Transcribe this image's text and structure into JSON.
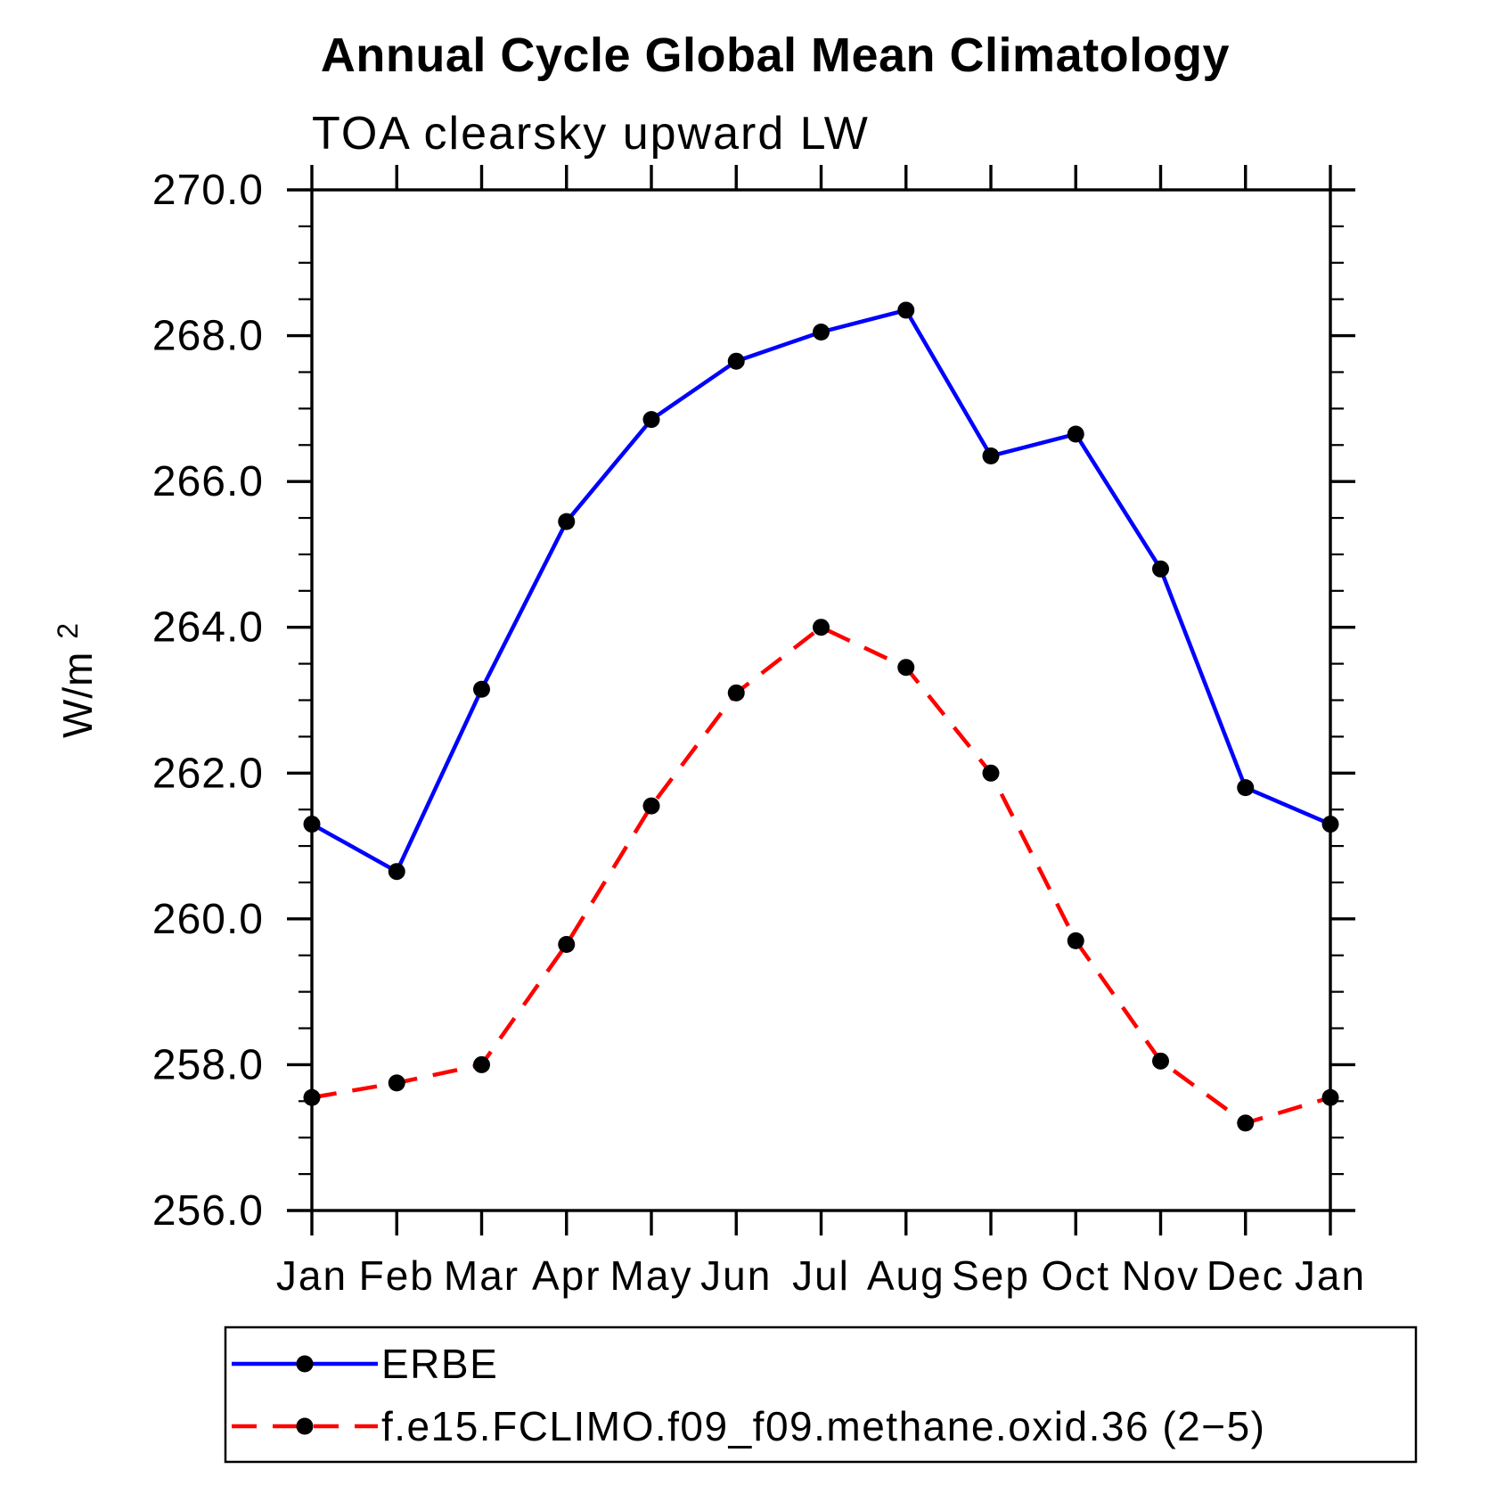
{
  "chart_data": {
    "type": "line",
    "title": "Annual Cycle Global Mean Climatology",
    "subtitle": "TOA clearsky upward LW",
    "ylabel": {
      "base": "W/m",
      "exponent": "2"
    },
    "categories": [
      "Jan",
      "Feb",
      "Mar",
      "Apr",
      "May",
      "Jun",
      "Jul",
      "Aug",
      "Sep",
      "Oct",
      "Nov",
      "Dec",
      "Jan"
    ],
    "ylim": [
      256.0,
      270.0
    ],
    "ytick_major_step": 2.0,
    "ytick_minor_step": 0.5,
    "ytick_labels": [
      "256.0",
      "258.0",
      "260.0",
      "262.0",
      "264.0",
      "266.0",
      "268.0",
      "270.0"
    ],
    "grid": false,
    "legend_position": "bottom-left",
    "axis_color": "#000000",
    "marker_color": "#000000",
    "series": [
      {
        "name": "ERBE",
        "color": "#0000ff",
        "line_style": "solid",
        "values": [
          261.3,
          260.65,
          263.15,
          265.45,
          266.85,
          267.65,
          268.05,
          268.35,
          266.35,
          266.65,
          264.8,
          261.8,
          261.3
        ]
      },
      {
        "name": "f.e15.FCLIMO.f09_f09.methane.oxid.36 (2−5)",
        "color": "#ff0000",
        "line_style": "dashed",
        "values": [
          257.55,
          257.75,
          258.0,
          259.65,
          261.55,
          263.1,
          264.0,
          263.45,
          262.0,
          259.7,
          258.05,
          257.2,
          257.55
        ]
      }
    ]
  }
}
